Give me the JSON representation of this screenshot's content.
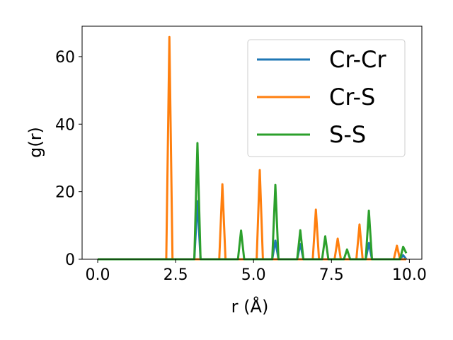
{
  "chart_data": {
    "type": "line",
    "xlabel": "r (Å)",
    "ylabel": "g(r)",
    "xlim": [
      -0.5,
      10.4
    ],
    "ylim": [
      0,
      69
    ],
    "x_ticks": [
      0.0,
      2.5,
      5.0,
      7.5,
      10.0
    ],
    "x_tick_labels": [
      "0.0",
      "2.5",
      "5.0",
      "7.5",
      "10.0"
    ],
    "y_ticks": [
      0,
      20,
      40,
      60
    ],
    "y_tick_labels": [
      "0",
      "20",
      "40",
      "60"
    ],
    "grid": false,
    "legend_position": "top-right",
    "series": [
      {
        "name": "Cr-Cr",
        "color": "#1f77b4",
        "points": [
          [
            0,
            0
          ],
          [
            3.1,
            0
          ],
          [
            3.2,
            17.2
          ],
          [
            3.3,
            0
          ],
          [
            5.6,
            0
          ],
          [
            5.7,
            5.5
          ],
          [
            5.8,
            0
          ],
          [
            6.4,
            0
          ],
          [
            6.5,
            4.5
          ],
          [
            6.6,
            0
          ],
          [
            8.6,
            0
          ],
          [
            8.7,
            4.8
          ],
          [
            8.8,
            0
          ],
          [
            9.7,
            0
          ],
          [
            9.8,
            1.2
          ],
          [
            9.9,
            0
          ]
        ]
      },
      {
        "name": "Cr-S",
        "color": "#ff7f0e",
        "points": [
          [
            0,
            0
          ],
          [
            2.2,
            0
          ],
          [
            2.3,
            65.8
          ],
          [
            2.4,
            0
          ],
          [
            3.9,
            0
          ],
          [
            4.0,
            22.2
          ],
          [
            4.1,
            0
          ],
          [
            5.1,
            0
          ],
          [
            5.2,
            26.4
          ],
          [
            5.3,
            0
          ],
          [
            6.9,
            0
          ],
          [
            7.0,
            14.7
          ],
          [
            7.1,
            0
          ],
          [
            7.6,
            0
          ],
          [
            7.7,
            6.1
          ],
          [
            7.8,
            0
          ],
          [
            8.3,
            0
          ],
          [
            8.4,
            10.3
          ],
          [
            8.5,
            0
          ],
          [
            9.5,
            0
          ],
          [
            9.6,
            4.0
          ],
          [
            9.7,
            0
          ],
          [
            9.9,
            0
          ]
        ]
      },
      {
        "name": "S-S",
        "color": "#2ca02c",
        "points": [
          [
            0,
            0
          ],
          [
            3.1,
            0
          ],
          [
            3.2,
            34.4
          ],
          [
            3.3,
            0
          ],
          [
            4.5,
            0
          ],
          [
            4.6,
            8.5
          ],
          [
            4.7,
            0
          ],
          [
            5.6,
            0
          ],
          [
            5.7,
            22.0
          ],
          [
            5.8,
            0
          ],
          [
            6.4,
            0
          ],
          [
            6.5,
            8.6
          ],
          [
            6.6,
            0
          ],
          [
            7.2,
            0
          ],
          [
            7.3,
            6.8
          ],
          [
            7.4,
            0
          ],
          [
            7.9,
            0
          ],
          [
            8.0,
            2.9
          ],
          [
            8.1,
            0
          ],
          [
            8.6,
            0
          ],
          [
            8.7,
            14.4
          ],
          [
            8.8,
            0
          ],
          [
            9.7,
            0
          ],
          [
            9.8,
            3.7
          ],
          [
            9.9,
            1.8
          ]
        ]
      }
    ]
  }
}
